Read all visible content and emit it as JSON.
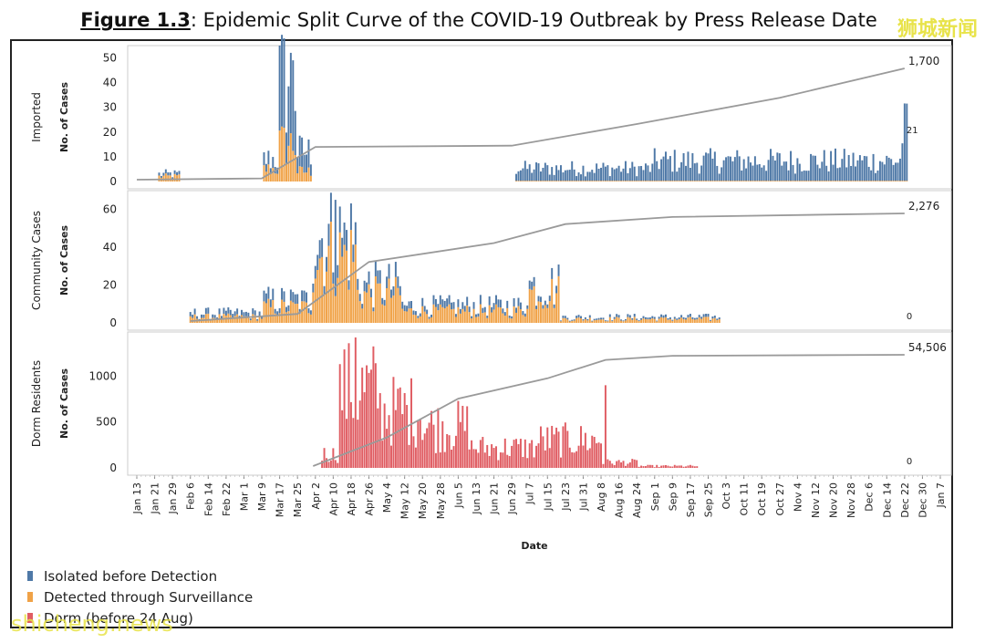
{
  "title": {
    "figure_label": "Figure 1.3",
    "text": ": Epidemic Split Curve of the COVID-19 Outbreak by Press Release Date"
  },
  "watermarks": {
    "top": "狮城新闻",
    "bottom": "shicheng.news"
  },
  "legend": [
    {
      "label": "Isolated before Detection",
      "color": "#4f79a7"
    },
    {
      "label": "Detected through Surveillance",
      "color": "#f0a247"
    },
    {
      "label": "Dorm (before 24 Aug)",
      "color": "#e05d63"
    }
  ],
  "chart_data": {
    "type": "bar",
    "xlabel": "Date",
    "x_ticks": [
      "Jan 13",
      "Jan 21",
      "Jan 29",
      "Feb 6",
      "Feb 14",
      "Feb 22",
      "Mar 1",
      "Mar 9",
      "Mar 17",
      "Mar 25",
      "Apr 2",
      "Apr 10",
      "Apr 18",
      "Apr 26",
      "May 4",
      "May 12",
      "May 20",
      "May 28",
      "Jun 5",
      "Jun 13",
      "Jun 21",
      "Jun 29",
      "Jul 7",
      "Jul 15",
      "Jul 23",
      "Jul 31",
      "Aug 8",
      "Aug 16",
      "Aug 24",
      "Sep 1",
      "Sep 9",
      "Sep 17",
      "Sep 25",
      "Oct 3",
      "Oct 11",
      "Oct 19",
      "Oct 27",
      "Nov 4",
      "Nov 12",
      "Nov 20",
      "Nov 28",
      "Dec 6",
      "Dec 14",
      "Dec 22",
      "Dec 30",
      "Jan 7"
    ],
    "panels": [
      {
        "name": "Imported",
        "ylabel": "No. of Cases",
        "y_ticks": [
          0,
          10,
          20,
          30,
          40,
          50
        ],
        "ylim": [
          0,
          52
        ],
        "cumulative_label": "1,700",
        "last_value_label": "21",
        "daily_profile": [
          {
            "from": "Jan 23",
            "to": "Feb 1",
            "isolated": 1,
            "surveillance": 2
          },
          {
            "from": "Mar 10",
            "to": "Mar 16",
            "isolated": 4,
            "surveillance": 5
          },
          {
            "from": "Mar 17",
            "to": "Mar 24",
            "isolated": 25,
            "surveillance": 15
          },
          {
            "from": "Mar 25",
            "to": "Mar 31",
            "isolated": 8,
            "surveillance": 4
          },
          {
            "from": "Jul 1",
            "to": "Aug 31",
            "isolated": 5,
            "surveillance": 0
          },
          {
            "from": "Sep 1",
            "to": "Dec 20",
            "isolated": 8,
            "surveillance": 0
          },
          {
            "from": "Dec 21",
            "to": "Dec 23",
            "isolated": 20,
            "surveillance": 0
          }
        ],
        "peak": {
          "date": "Mar 23",
          "value": 49
        },
        "cumulative_points": [
          {
            "date": "Jan 13",
            "value": 0
          },
          {
            "date": "Mar 9",
            "value": 20
          },
          {
            "date": "Apr 2",
            "value": 500
          },
          {
            "date": "Jun 29",
            "value": 520
          },
          {
            "date": "Aug 24",
            "value": 850
          },
          {
            "date": "Oct 27",
            "value": 1250
          },
          {
            "date": "Dec 22",
            "value": 1700
          }
        ]
      },
      {
        "name": "Community Cases",
        "ylabel": "No. of Cases",
        "y_ticks": [
          0,
          20,
          40,
          60
        ],
        "ylim": [
          0,
          66
        ],
        "cumulative_label": "2,276",
        "last_value_label": "0",
        "daily_profile": [
          {
            "from": "Feb 6",
            "to": "Mar 9",
            "isolated": 2,
            "surveillance": 3
          },
          {
            "from": "Mar 10",
            "to": "Mar 31",
            "isolated": 4,
            "surveillance": 8
          },
          {
            "from": "Apr 1",
            "to": "Apr 20",
            "isolated": 10,
            "surveillance": 35
          },
          {
            "from": "Apr 21",
            "to": "May 10",
            "isolated": 5,
            "surveillance": 15
          },
          {
            "from": "May 11",
            "to": "Jul 5",
            "isolated": 3,
            "surveillance": 6
          },
          {
            "from": "Jul 6",
            "to": "Jul 20",
            "isolated": 4,
            "surveillance": 16
          },
          {
            "from": "Jul 21",
            "to": "Sep 30",
            "isolated": 1,
            "surveillance": 2
          }
        ],
        "peak": {
          "date": "Apr 11",
          "value": 65
        },
        "cumulative_points": [
          {
            "date": "Feb 6",
            "value": 0
          },
          {
            "date": "Mar 25",
            "value": 150
          },
          {
            "date": "Apr 26",
            "value": 1250
          },
          {
            "date": "Jun 21",
            "value": 1650
          },
          {
            "date": "Jul 23",
            "value": 2050
          },
          {
            "date": "Sep 9",
            "value": 2200
          },
          {
            "date": "Dec 22",
            "value": 2276
          }
        ]
      },
      {
        "name": "Dorm Residents",
        "ylabel": "No. of Cases",
        "y_ticks": [
          0,
          500,
          1000
        ],
        "ylim": [
          0,
          1400
        ],
        "cumulative_label": "54,506",
        "last_value_label": "0",
        "daily_profile": [
          {
            "from": "Apr 5",
            "to": "Apr 12",
            "dorm": 150
          },
          {
            "from": "Apr 13",
            "to": "Apr 30",
            "dorm": 850
          },
          {
            "from": "May 1",
            "to": "May 20",
            "dorm": 620
          },
          {
            "from": "May 21",
            "to": "Jun 10",
            "dorm": 450
          },
          {
            "from": "Jun 11",
            "to": "Jul 10",
            "dorm": 220
          },
          {
            "from": "Jul 11",
            "to": "Aug 8",
            "dorm": 300
          },
          {
            "from": "Aug 9",
            "to": "Aug 24",
            "dorm": 60
          },
          {
            "from": "Aug 25",
            "to": "Sep 20",
            "dorm": 20
          }
        ],
        "peak": {
          "date": "Apr 20",
          "value": 1420
        },
        "secondary_peak": {
          "date": "Aug 10",
          "value": 900
        },
        "cumulative_points": [
          {
            "date": "Apr 1",
            "value": 0
          },
          {
            "date": "May 4",
            "value": 14000
          },
          {
            "date": "Jun 5",
            "value": 33000
          },
          {
            "date": "Jul 15",
            "value": 43000
          },
          {
            "date": "Aug 10",
            "value": 52000
          },
          {
            "date": "Sep 9",
            "value": 54000
          },
          {
            "date": "Dec 22",
            "value": 54506
          }
        ]
      }
    ]
  }
}
